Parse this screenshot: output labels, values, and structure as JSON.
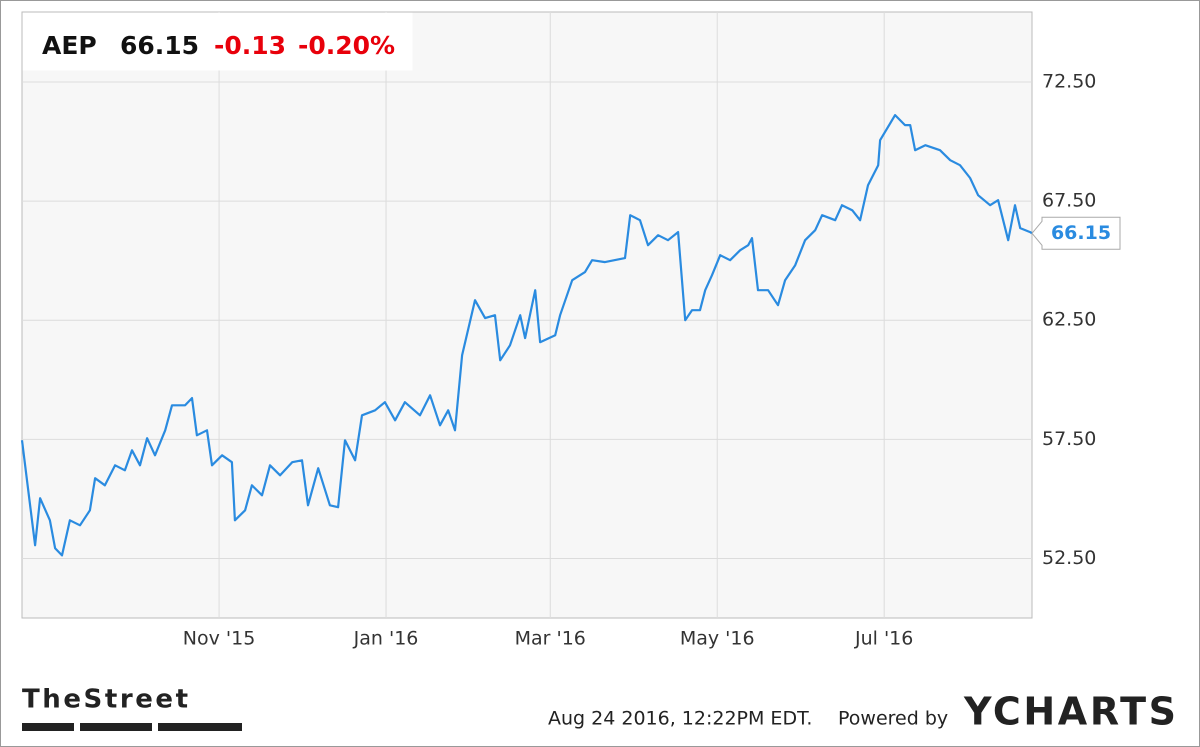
{
  "chart_data": {
    "type": "line",
    "header": {
      "ticker": "AEP",
      "price": 66.15,
      "change": -0.13,
      "change_pct": "-0.20%"
    },
    "x": [
      0,
      4.8,
      6.6,
      10.2,
      12.1,
      14.6,
      17.5,
      21.2,
      24.8,
      26.7,
      30.3,
      34.0,
      37.6,
      40.2,
      43.1,
      45.7,
      48.6,
      52.3,
      54.8,
      59.6,
      62.1,
      63.9,
      67.6,
      69.4,
      73.1,
      76.7,
      77.8,
      81.5,
      84.0,
      87.7,
      90.6,
      94.3,
      98.7,
      102.3,
      104.5,
      108.2,
      112.5,
      115.5,
      118.0,
      121.7,
      124.2,
      129.0,
      132.6,
      136.3,
      139.9,
      145.4,
      149.1,
      152.7,
      155.7,
      158.2,
      160.8,
      165.5,
      169.2,
      172.8,
      174.7,
      178.3,
      182.0,
      183.8,
      187.5,
      189.3,
      194.8,
      196.6,
      201.0,
      205.7,
      208.3,
      213.0,
      220.3,
      222.2,
      225.8,
      228.7,
      232.4,
      236.0,
      239.7,
      242.3,
      244.8,
      247.7,
      249.6,
      252.1,
      255.1,
      258.7,
      262.4,
      265.3,
      266.7,
      268.9,
      272.6,
      276.2,
      278.8,
      282.5,
      286.1,
      289.8,
      292.3,
      297.1,
      299.6,
      303.3,
      306.2,
      309.1,
      312.8,
      313.5,
      319.0,
      322.6,
      324.5,
      326.3,
      330.0,
      335.4,
      339.1,
      342.7,
      346.4,
      349.3,
      353.7,
      356.6,
      360.3,
      362.8,
      364.7,
      368.3,
      369
    ],
    "series": [
      {
        "name": "AEP",
        "color": "#2a8be0",
        "values": [
          57.46,
          53.05,
          55.03,
          54.1,
          52.93,
          52.63,
          54.1,
          53.89,
          54.52,
          55.87,
          55.57,
          56.41,
          56.2,
          57.04,
          56.41,
          57.55,
          56.83,
          57.88,
          58.93,
          58.93,
          59.23,
          57.67,
          57.88,
          56.41,
          56.83,
          56.54,
          54.1,
          54.52,
          55.57,
          55.15,
          56.41,
          55.99,
          56.54,
          56.62,
          54.73,
          56.29,
          54.73,
          54.65,
          57.46,
          56.62,
          58.51,
          58.72,
          59.06,
          58.3,
          59.06,
          58.51,
          59.35,
          58.09,
          58.72,
          57.88,
          61.03,
          63.34,
          62.59,
          62.71,
          60.82,
          61.45,
          62.71,
          61.75,
          63.76,
          61.58,
          61.87,
          62.71,
          64.18,
          64.52,
          65.02,
          64.94,
          65.11,
          66.91,
          66.7,
          65.65,
          66.07,
          65.86,
          66.2,
          62.5,
          62.92,
          62.92,
          63.76,
          64.39,
          65.23,
          65.02,
          65.44,
          65.65,
          65.95,
          63.76,
          63.76,
          63.13,
          64.18,
          64.81,
          65.86,
          66.28,
          66.91,
          66.7,
          67.33,
          67.12,
          66.7,
          68.17,
          69.01,
          70.06,
          71.11,
          70.69,
          70.69,
          69.64,
          69.85,
          69.64,
          69.22,
          69.01,
          68.47,
          67.75,
          67.33,
          67.54,
          65.86,
          67.33,
          66.37,
          66.2,
          66.15
        ]
      }
    ],
    "xlim": [
      0,
      369
    ],
    "xticks": [
      {
        "value": 72,
        "label": "Nov '15"
      },
      {
        "value": 133,
        "label": "Jan '16"
      },
      {
        "value": 193,
        "label": "Mar '16"
      },
      {
        "value": 254,
        "label": "May '16"
      },
      {
        "value": 315,
        "label": "Jul '16"
      }
    ],
    "ylim": [
      50,
      75.44
    ],
    "yticks": [
      {
        "value": 52.5,
        "label": "52.50"
      },
      {
        "value": 57.5,
        "label": "57.50"
      },
      {
        "value": 62.5,
        "label": "62.50"
      },
      {
        "value": 67.5,
        "label": "67.50"
      },
      {
        "value": 72.5,
        "label": "72.50"
      }
    ],
    "grid": true
  },
  "footer": {
    "logo_left": "TheStreet",
    "timestamp": "Aug 24 2016, 12:22PM EDT.",
    "powered_by": "Powered by",
    "logo_right": "YCHARTS"
  }
}
